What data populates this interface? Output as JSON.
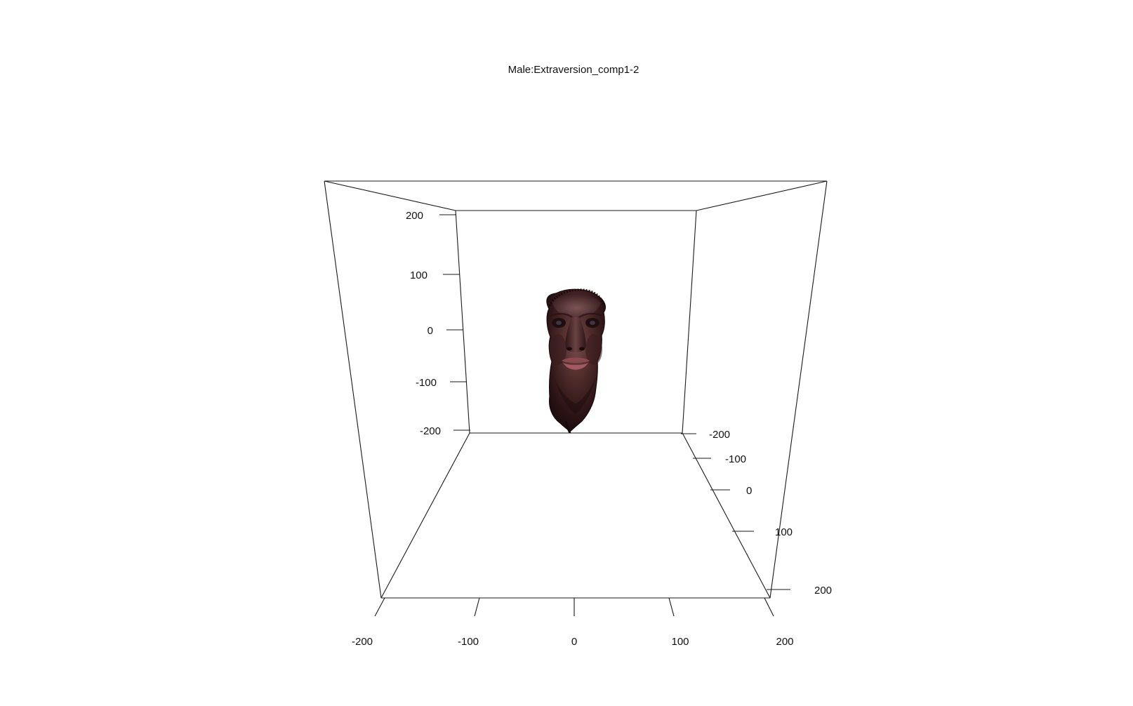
{
  "title": "Male:Extraversion_comp1-2",
  "axes": {
    "x": {
      "range": [
        -200,
        200
      ],
      "ticks": [
        "-200",
        "-100",
        "0",
        "100",
        "200"
      ]
    },
    "y": {
      "range": [
        -200,
        200
      ],
      "ticks": [
        "-200",
        "-100",
        "0",
        "100",
        "200"
      ]
    },
    "z": {
      "range": [
        -200,
        200
      ],
      "ticks": [
        "-200",
        "-100",
        "0",
        "100",
        "200"
      ]
    }
  },
  "object": {
    "kind": "3d-face-mesh",
    "colors": {
      "skin_dark": "#2a1214",
      "skin_mid": "#4a2628",
      "skin_light": "#6e4446",
      "lips": "#a0545c",
      "hair": "#1c0d0e"
    }
  },
  "colors": {
    "background": "#ffffff",
    "axis": "#1a1a1a"
  }
}
